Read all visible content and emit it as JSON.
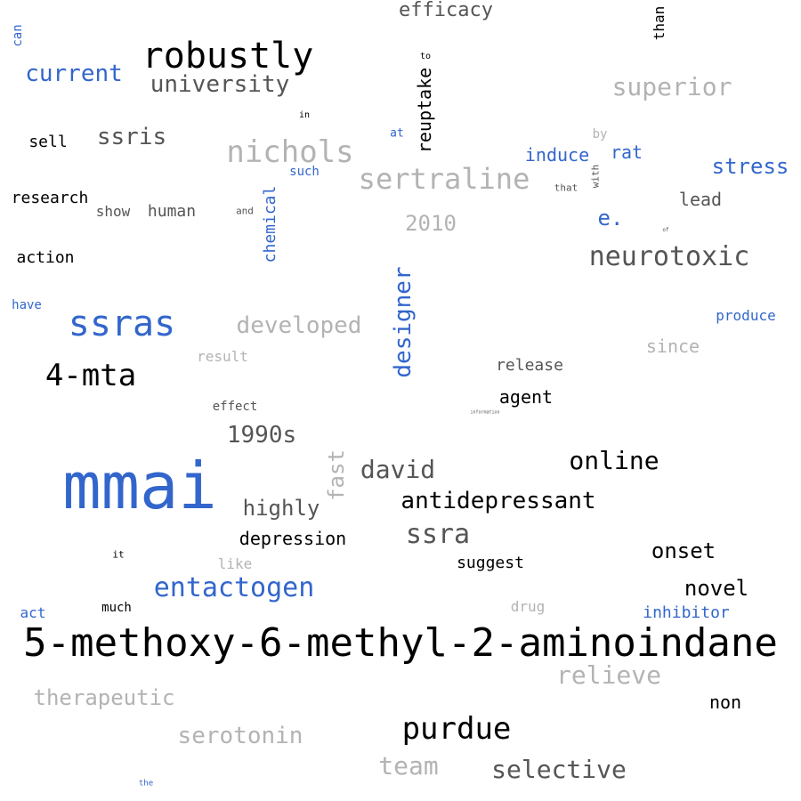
{
  "palette": {
    "black": "#000000",
    "dark_gray": "#555555",
    "light_gray": "#b3b3b3",
    "blue": "#3366cc"
  },
  "words": [
    {
      "text": "mmai",
      "color": "blue"
    },
    {
      "text": "5-methoxy-6-methyl-2-aminoindane",
      "color": "black"
    },
    {
      "text": "robustly",
      "color": "black"
    },
    {
      "text": "ssras",
      "color": "blue"
    },
    {
      "text": "4-mta",
      "color": "black"
    },
    {
      "text": "nichols",
      "color": "light_gray"
    },
    {
      "text": "sertraline",
      "color": "light_gray"
    },
    {
      "text": "neurotoxic",
      "color": "dark_gray"
    },
    {
      "text": "purdue",
      "color": "black"
    },
    {
      "text": "entactogen",
      "color": "blue"
    },
    {
      "text": "ssra",
      "color": "dark_gray"
    },
    {
      "text": "designer",
      "color": "blue"
    },
    {
      "text": "superior",
      "color": "light_gray"
    },
    {
      "text": "university",
      "color": "dark_gray"
    },
    {
      "text": "current",
      "color": "blue"
    },
    {
      "text": "ssris",
      "color": "dark_gray"
    },
    {
      "text": "developed",
      "color": "light_gray"
    },
    {
      "text": "david",
      "color": "dark_gray"
    },
    {
      "text": "online",
      "color": "black"
    },
    {
      "text": "antidepressant",
      "color": "black"
    },
    {
      "text": "selective",
      "color": "dark_gray"
    },
    {
      "text": "relieve",
      "color": "light_gray"
    },
    {
      "text": "serotonin",
      "color": "light_gray"
    },
    {
      "text": "therapeutic",
      "color": "light_gray"
    },
    {
      "text": "team",
      "color": "light_gray"
    },
    {
      "text": "1990s",
      "color": "dark_gray"
    },
    {
      "text": "fast",
      "color": "light_gray"
    },
    {
      "text": "highly",
      "color": "dark_gray"
    },
    {
      "text": "stress",
      "color": "blue"
    },
    {
      "text": "efficacy",
      "color": "dark_gray"
    },
    {
      "text": "2010",
      "color": "light_gray"
    },
    {
      "text": "e.",
      "color": "blue"
    },
    {
      "text": "novel",
      "color": "black"
    },
    {
      "text": "onset",
      "color": "black"
    },
    {
      "text": "depression",
      "color": "black"
    },
    {
      "text": "reuptake",
      "color": "black"
    },
    {
      "text": "chemical",
      "color": "blue"
    },
    {
      "text": "induce",
      "color": "blue"
    },
    {
      "text": "rat",
      "color": "blue"
    },
    {
      "text": "release",
      "color": "dark_gray"
    },
    {
      "text": "agent",
      "color": "black"
    },
    {
      "text": "suggest",
      "color": "black"
    },
    {
      "text": "since",
      "color": "light_gray"
    },
    {
      "text": "lead",
      "color": "dark_gray"
    },
    {
      "text": "inhibitor",
      "color": "blue"
    },
    {
      "text": "non",
      "color": "black"
    },
    {
      "text": "research",
      "color": "black"
    },
    {
      "text": "action",
      "color": "black"
    },
    {
      "text": "human",
      "color": "dark_gray"
    },
    {
      "text": "sell",
      "color": "black"
    },
    {
      "text": "produce",
      "color": "blue"
    },
    {
      "text": "show",
      "color": "dark_gray"
    },
    {
      "text": "than",
      "color": "black"
    },
    {
      "text": "result",
      "color": "light_gray"
    },
    {
      "text": "like",
      "color": "light_gray"
    },
    {
      "text": "drug",
      "color": "light_gray"
    },
    {
      "text": "effect",
      "color": "dark_gray"
    },
    {
      "text": "act",
      "color": "blue"
    },
    {
      "text": "much",
      "color": "black"
    },
    {
      "text": "have",
      "color": "blue"
    },
    {
      "text": "can",
      "color": "blue"
    },
    {
      "text": "such",
      "color": "blue"
    },
    {
      "text": "at",
      "color": "blue"
    },
    {
      "text": "by",
      "color": "light_gray"
    },
    {
      "text": "and",
      "color": "dark_gray"
    },
    {
      "text": "that",
      "color": "dark_gray"
    },
    {
      "text": "with",
      "color": "dark_gray"
    },
    {
      "text": "in",
      "color": "black"
    },
    {
      "text": "to",
      "color": "black"
    },
    {
      "text": "it",
      "color": "black"
    },
    {
      "text": "the",
      "color": "blue"
    },
    {
      "text": "of",
      "color": "dark_gray"
    },
    {
      "text": "information",
      "color": "dark_gray"
    }
  ]
}
